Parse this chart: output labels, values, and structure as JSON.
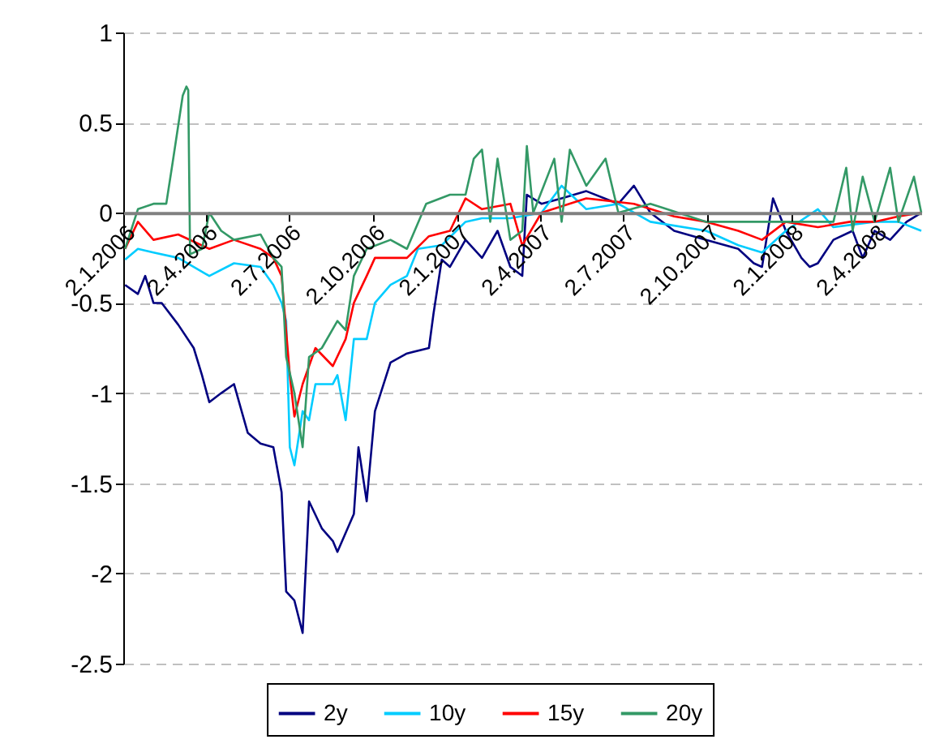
{
  "chart_data": {
    "type": "line",
    "xlim": [
      "2006-01-02",
      "2008-05-23"
    ],
    "ylim": [
      -2.5,
      1
    ],
    "xticks": [
      {
        "value": "2006-01-02",
        "label": "2.1.2006"
      },
      {
        "value": "2006-04-02",
        "label": "2.4.2006"
      },
      {
        "value": "2006-07-02",
        "label": "2.7.2006"
      },
      {
        "value": "2006-10-02",
        "label": "2.10.2006"
      },
      {
        "value": "2007-01-02",
        "label": "2.1.2007"
      },
      {
        "value": "2007-04-02",
        "label": "2.4.2007"
      },
      {
        "value": "2007-07-02",
        "label": "2.7.2007"
      },
      {
        "value": "2007-10-02",
        "label": "2.10.2007"
      },
      {
        "value": "2008-01-02",
        "label": "2.1.2008"
      },
      {
        "value": "2008-04-02",
        "label": "2.4.2008"
      }
    ],
    "yticks": [
      -2.5,
      -2,
      -1.5,
      -1,
      -0.5,
      0,
      0.5,
      1
    ],
    "grid": "y",
    "legend": "bottom",
    "marker": "none",
    "line_style": "solid",
    "series": [
      {
        "name": "2y",
        "color": "#000080",
        "x": [
          "2006-01-04",
          "2006-01-18",
          "2006-01-26",
          "2006-02-04",
          "2006-02-13",
          "2006-03-03",
          "2006-03-20",
          "2006-03-29",
          "2006-04-06",
          "2006-04-19",
          "2006-05-03",
          "2006-05-18",
          "2006-06-01",
          "2006-06-15",
          "2006-06-24",
          "2006-06-29",
          "2006-07-08",
          "2006-07-17",
          "2006-07-24",
          "2006-08-07",
          "2006-08-19",
          "2006-08-24",
          "2006-09-11",
          "2006-09-16",
          "2006-09-25",
          "2006-10-04",
          "2006-10-21",
          "2006-11-08",
          "2006-12-02",
          "2006-12-07",
          "2006-12-16",
          "2006-12-25",
          "2007-01-11",
          "2007-01-29",
          "2007-02-15",
          "2007-03-01",
          "2007-03-14",
          "2007-03-19",
          "2007-04-04",
          "2007-04-26",
          "2007-05-23",
          "2007-06-27",
          "2007-07-14",
          "2007-08-01",
          "2007-08-27",
          "2007-10-01",
          "2007-11-05",
          "2007-11-22",
          "2007-12-01",
          "2007-12-13",
          "2007-12-27",
          "2008-01-13",
          "2008-01-22",
          "2008-01-31",
          "2008-02-17",
          "2008-03-09",
          "2008-03-20",
          "2008-04-02",
          "2008-04-19",
          "2008-05-07",
          "2008-05-23"
        ],
        "values": [
          -0.4,
          -0.45,
          -0.35,
          -0.5,
          -0.5,
          -0.62,
          -0.75,
          -0.9,
          -1.05,
          -1.0,
          -0.95,
          -1.22,
          -1.28,
          -1.3,
          -1.55,
          -2.1,
          -2.15,
          -2.33,
          -1.6,
          -1.75,
          -1.82,
          -1.88,
          -1.67,
          -1.3,
          -1.6,
          -1.1,
          -0.83,
          -0.78,
          -0.75,
          -0.56,
          -0.26,
          -0.3,
          -0.15,
          -0.25,
          -0.1,
          -0.3,
          -0.35,
          0.1,
          0.05,
          0.08,
          0.12,
          0.05,
          0.15,
          0.0,
          -0.1,
          -0.15,
          -0.2,
          -0.28,
          -0.3,
          0.08,
          -0.1,
          -0.25,
          -0.3,
          -0.28,
          -0.15,
          -0.1,
          -0.25,
          -0.1,
          -0.15,
          -0.05,
          0.0
        ]
      },
      {
        "name": "10y",
        "color": "#00ccff",
        "x": [
          "2006-01-04",
          "2006-01-18",
          "2006-02-04",
          "2006-03-03",
          "2006-04-06",
          "2006-05-03",
          "2006-06-01",
          "2006-06-15",
          "2006-06-24",
          "2006-06-29",
          "2006-07-03",
          "2006-07-08",
          "2006-07-17",
          "2006-07-24",
          "2006-07-31",
          "2006-08-19",
          "2006-08-24",
          "2006-09-02",
          "2006-09-11",
          "2006-09-25",
          "2006-10-04",
          "2006-10-21",
          "2006-11-08",
          "2006-11-20",
          "2006-12-16",
          "2007-01-11",
          "2007-01-29",
          "2007-03-01",
          "2007-04-04",
          "2007-04-26",
          "2007-05-23",
          "2007-06-27",
          "2007-08-01",
          "2007-10-01",
          "2007-11-05",
          "2007-12-01",
          "2007-12-27",
          "2008-01-31",
          "2008-02-17",
          "2008-04-02",
          "2008-04-28",
          "2008-05-23"
        ],
        "values": [
          -0.26,
          -0.2,
          -0.22,
          -0.25,
          -0.35,
          -0.28,
          -0.3,
          -0.4,
          -0.5,
          -0.6,
          -1.3,
          -1.4,
          -1.1,
          -1.15,
          -0.95,
          -0.95,
          -0.9,
          -1.15,
          -0.7,
          -0.7,
          -0.5,
          -0.4,
          -0.35,
          -0.2,
          -0.18,
          -0.05,
          -0.03,
          -0.03,
          0.0,
          0.15,
          0.02,
          0.05,
          -0.05,
          -0.1,
          -0.18,
          -0.22,
          -0.1,
          0.02,
          -0.08,
          -0.05,
          -0.05,
          -0.1
        ]
      },
      {
        "name": "15y",
        "color": "#ff0000",
        "x": [
          "2006-01-04",
          "2006-01-18",
          "2006-02-04",
          "2006-03-03",
          "2006-04-06",
          "2006-05-03",
          "2006-06-01",
          "2006-06-15",
          "2006-06-24",
          "2006-07-03",
          "2006-07-08",
          "2006-07-17",
          "2006-07-31",
          "2006-08-19",
          "2006-09-02",
          "2006-09-11",
          "2006-09-25",
          "2006-10-04",
          "2006-11-08",
          "2006-12-02",
          "2006-12-25",
          "2007-01-11",
          "2007-01-29",
          "2007-03-01",
          "2007-03-14",
          "2007-04-04",
          "2007-05-23",
          "2007-07-14",
          "2007-08-27",
          "2007-10-01",
          "2007-11-05",
          "2007-12-01",
          "2007-12-27",
          "2008-01-31",
          "2008-03-06",
          "2008-04-02",
          "2008-04-28",
          "2008-05-23"
        ],
        "values": [
          -0.2,
          -0.05,
          -0.15,
          -0.12,
          -0.2,
          -0.15,
          -0.2,
          -0.25,
          -0.35,
          -0.9,
          -1.13,
          -0.95,
          -0.75,
          -0.85,
          -0.7,
          -0.5,
          -0.35,
          -0.25,
          -0.25,
          -0.13,
          -0.1,
          0.08,
          0.02,
          0.05,
          -0.18,
          0.0,
          0.08,
          0.05,
          -0.02,
          -0.05,
          -0.1,
          -0.15,
          -0.05,
          -0.08,
          -0.05,
          -0.05,
          -0.02,
          0.0
        ]
      },
      {
        "name": "20y",
        "color": "#339966",
        "x": [
          "2006-01-04",
          "2006-01-18",
          "2006-02-04",
          "2006-02-18",
          "2006-02-25",
          "2006-03-08",
          "2006-03-12",
          "2006-03-14",
          "2006-03-16",
          "2006-03-29",
          "2006-04-06",
          "2006-04-19",
          "2006-05-03",
          "2006-06-01",
          "2006-06-15",
          "2006-06-24",
          "2006-06-29",
          "2006-07-08",
          "2006-07-17",
          "2006-07-24",
          "2006-08-07",
          "2006-08-24",
          "2006-09-02",
          "2006-09-11",
          "2006-09-25",
          "2006-10-21",
          "2006-11-08",
          "2006-11-29",
          "2006-12-25",
          "2007-01-11",
          "2007-01-20",
          "2007-01-29",
          "2007-02-07",
          "2007-02-15",
          "2007-03-01",
          "2007-03-14",
          "2007-03-19",
          "2007-03-26",
          "2007-04-18",
          "2007-04-26",
          "2007-05-05",
          "2007-05-23",
          "2007-06-13",
          "2007-06-27",
          "2007-08-01",
          "2007-10-01",
          "2007-11-22",
          "2007-12-27",
          "2008-02-17",
          "2008-03-02",
          "2008-03-09",
          "2008-03-20",
          "2008-04-02",
          "2008-04-19",
          "2008-04-28",
          "2008-05-15",
          "2008-05-23"
        ],
        "values": [
          -0.2,
          0.02,
          0.05,
          0.05,
          0.28,
          0.65,
          0.7,
          0.68,
          -0.23,
          -0.2,
          0.0,
          -0.1,
          -0.15,
          -0.12,
          -0.25,
          -0.3,
          -0.8,
          -1.0,
          -1.3,
          -0.8,
          -0.75,
          -0.6,
          -0.65,
          -0.35,
          -0.2,
          -0.15,
          -0.2,
          0.05,
          0.1,
          0.1,
          0.3,
          0.35,
          -0.05,
          0.3,
          -0.15,
          -0.1,
          0.37,
          0.0,
          0.3,
          -0.05,
          0.35,
          0.15,
          0.3,
          0.0,
          0.05,
          -0.05,
          -0.05,
          -0.05,
          -0.05,
          0.25,
          -0.1,
          0.2,
          -0.05,
          0.25,
          -0.05,
          0.2,
          0.0
        ]
      }
    ]
  }
}
